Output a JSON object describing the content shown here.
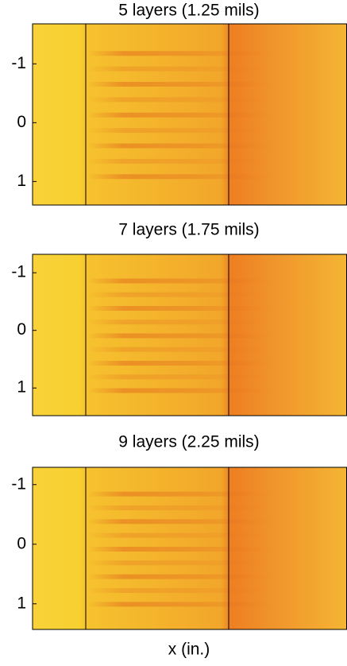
{
  "chart_data": [
    {
      "type": "heatmap",
      "title": "5 layers (1.25 mils)",
      "ylim": [
        1.4,
        -1.68
      ],
      "yticks": [
        -1,
        0,
        1
      ]
    },
    {
      "type": "heatmap",
      "title": "7 layers (1.75 mils)",
      "ylim": [
        1.48,
        -1.32
      ],
      "yticks": [
        -1,
        0,
        1
      ]
    },
    {
      "type": "heatmap",
      "title": "9 layers (2.25 mils)",
      "ylim": [
        1.43,
        -1.29
      ],
      "yticks": [
        -1,
        0,
        1
      ],
      "xlabel": "x (in.)"
    }
  ]
}
